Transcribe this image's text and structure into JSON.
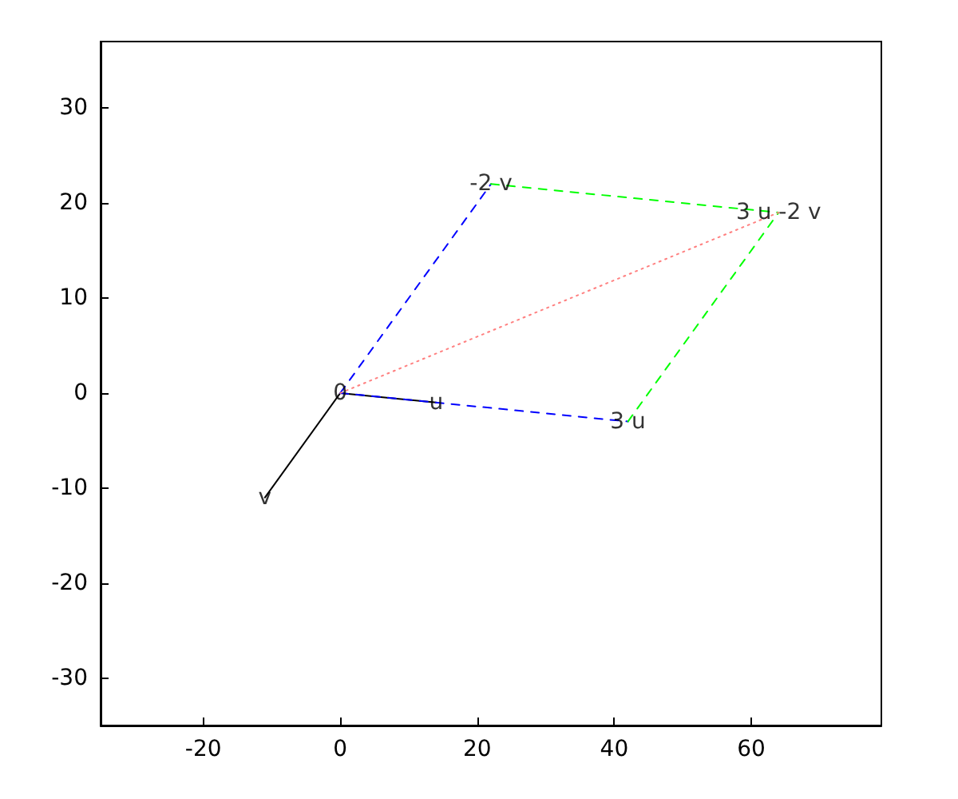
{
  "chart_data": {
    "type": "line",
    "xlim": [
      -35,
      79
    ],
    "ylim": [
      -35,
      37
    ],
    "xticks": [
      -20,
      0,
      20,
      40,
      60
    ],
    "yticks": [
      -30,
      -20,
      -10,
      0,
      10,
      20,
      30
    ],
    "grid": false,
    "marker": "none",
    "series": [
      {
        "color": "#000000",
        "line_style": "solid",
        "x": [
          0,
          14
        ],
        "values": [
          0,
          -1
        ]
      },
      {
        "color": "#000000",
        "line_style": "solid",
        "x": [
          0,
          -11
        ],
        "values": [
          0,
          -11
        ]
      },
      {
        "color": "#0000ff",
        "line_style": "dashed",
        "x": [
          0,
          42
        ],
        "values": [
          0,
          -3
        ]
      },
      {
        "color": "#0000ff",
        "line_style": "dashed",
        "x": [
          0,
          22
        ],
        "values": [
          0,
          22
        ]
      },
      {
        "color": "#00ff00",
        "line_style": "dashed",
        "x": [
          22,
          64
        ],
        "values": [
          22,
          19
        ]
      },
      {
        "color": "#00ff00",
        "line_style": "dashed",
        "x": [
          42,
          64
        ],
        "values": [
          -3,
          19
        ]
      },
      {
        "color": "#ff8080",
        "line_style": "dotted",
        "x": [
          0,
          64
        ],
        "values": [
          0,
          19
        ]
      }
    ],
    "annotations": [
      {
        "text": "0",
        "x": 0,
        "y": 0
      },
      {
        "text": "u",
        "x": 14,
        "y": -1
      },
      {
        "text": "v",
        "x": -11,
        "y": -11
      },
      {
        "text": "3 u",
        "x": 42,
        "y": -3
      },
      {
        "text": "-2 v",
        "x": 22,
        "y": 22
      },
      {
        "text": "3 u -2 v",
        "x": 64,
        "y": 19
      }
    ]
  }
}
